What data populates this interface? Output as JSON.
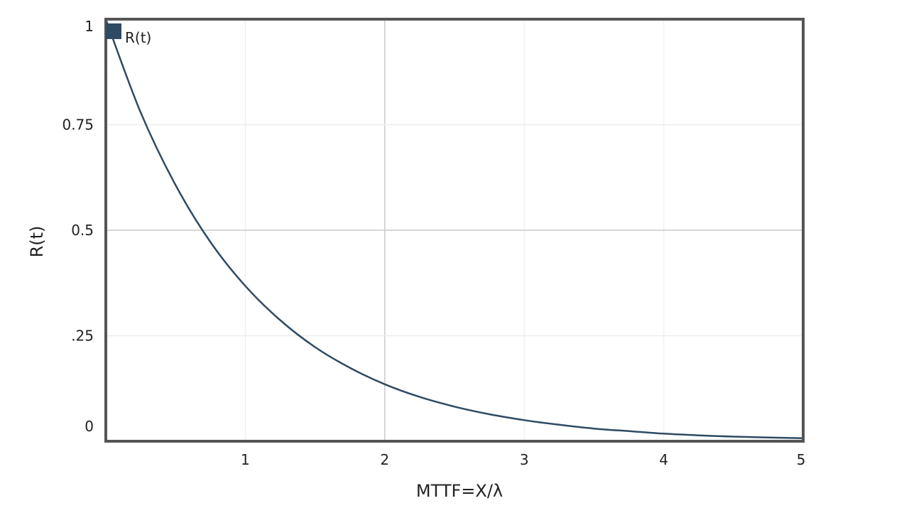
{
  "chart_data": {
    "type": "line",
    "xlabel": "MTTF=X/λ",
    "ylabel": "R(t)",
    "xlim": [
      0,
      5
    ],
    "ylim": [
      0,
      1
    ],
    "x_ticks": [
      {
        "value": 1,
        "label": "1"
      },
      {
        "value": 2,
        "label": "2"
      },
      {
        "value": 3,
        "label": "3"
      },
      {
        "value": 4,
        "label": "4"
      },
      {
        "value": 5,
        "label": "5"
      }
    ],
    "y_ticks": [
      {
        "value": 0,
        "label": "0"
      },
      {
        "value": 0.25,
        "label": ".25"
      },
      {
        "value": 0.5,
        "label": "0.5"
      },
      {
        "value": 0.75,
        "label": "0.75"
      },
      {
        "value": 1,
        "label": "1"
      }
    ],
    "grid": true,
    "legend": {
      "placement": "top-left"
    },
    "series": [
      {
        "name": "R(t)",
        "color": "#2f4a63",
        "x": [
          0,
          0.25,
          0.5,
          0.75,
          1,
          1.25,
          1.5,
          1.75,
          2,
          2.25,
          2.5,
          2.75,
          3,
          3.25,
          3.5,
          3.75,
          4,
          4.25,
          4.5,
          4.75,
          5
        ],
        "y": [
          1.0,
          0.779,
          0.607,
          0.472,
          0.368,
          0.287,
          0.223,
          0.174,
          0.135,
          0.105,
          0.082,
          0.064,
          0.05,
          0.039,
          0.03,
          0.024,
          0.018,
          0.014,
          0.011,
          0.009,
          0.007
        ]
      }
    ]
  }
}
